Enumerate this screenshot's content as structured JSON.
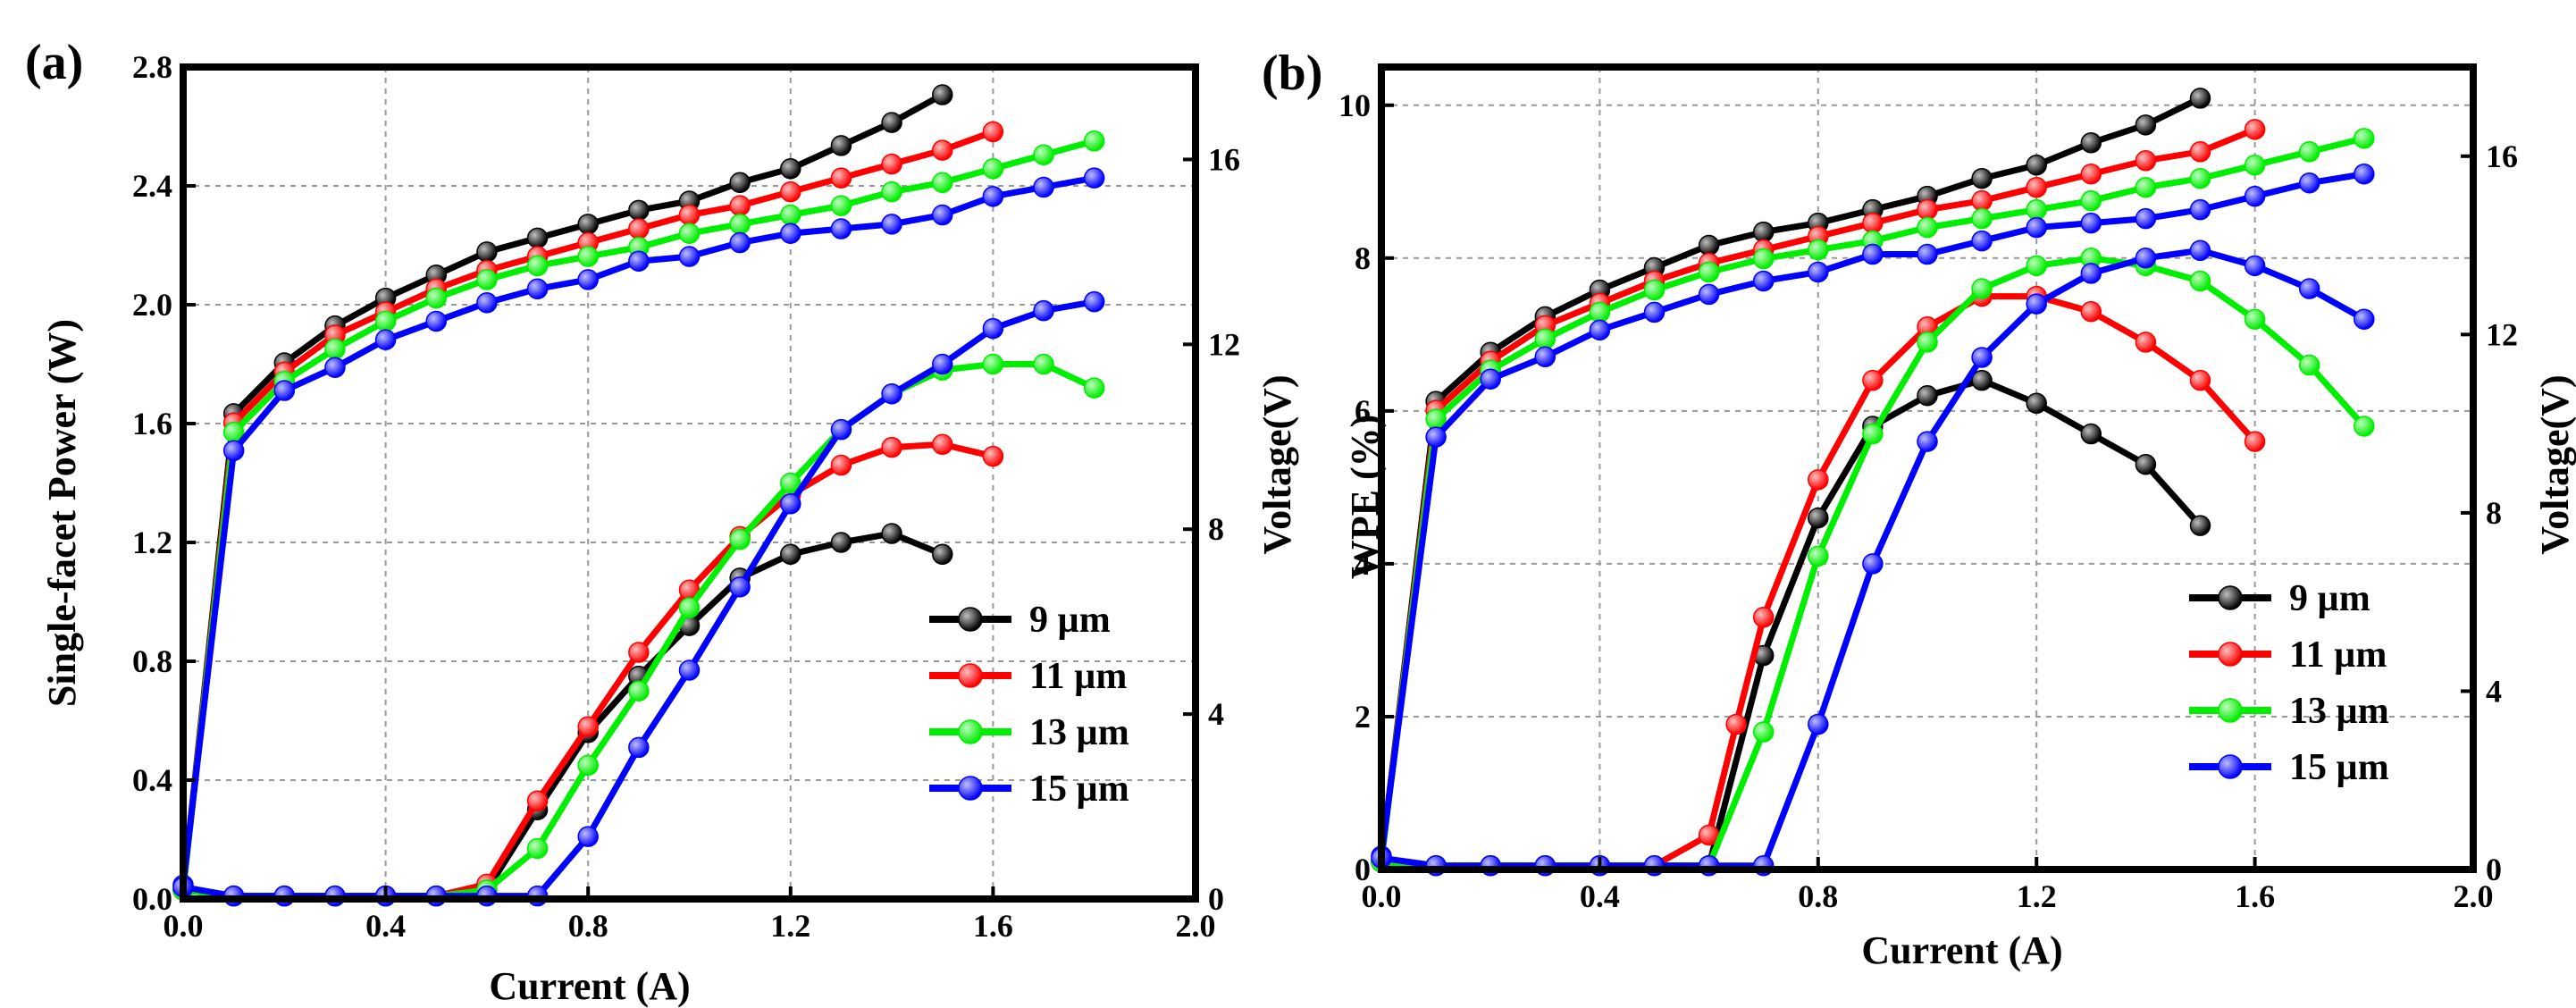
{
  "colors": {
    "9": "#000000",
    "11": "#ff0000",
    "13": "#00ee00",
    "15": "#0000ff"
  },
  "chart_data": [
    {
      "type": "line",
      "panel_label": "(a)",
      "xlabel": "Current (A)",
      "ylabel": "Single-facet Power (W)",
      "y2label": "Voltage(V)",
      "xlim": [
        0,
        2.0
      ],
      "ylim": [
        0,
        2.8
      ],
      "y2lim": [
        0,
        18
      ],
      "xticks": [
        "0.0",
        "0.4",
        "0.8",
        "1.2",
        "1.6",
        "2.0"
      ],
      "yticks": [
        "0.0",
        "0.4",
        "0.8",
        "1.2",
        "1.6",
        "2.0",
        "2.4",
        "2.8"
      ],
      "y2ticks": [
        "0",
        "4",
        "8",
        "12",
        "16"
      ],
      "grid": true,
      "legend_position": "lower-right",
      "series": [
        {
          "name": "9  µm",
          "key": "9",
          "power_x": [
            0,
            0.1,
            0.2,
            0.3,
            0.4,
            0.5,
            0.6,
            0.7,
            0.8,
            0.9,
            1.0,
            1.1,
            1.2,
            1.3,
            1.4,
            1.5
          ],
          "power": [
            0.03,
            0.01,
            0.01,
            0.01,
            0.01,
            0.01,
            0.03,
            0.3,
            0.56,
            0.75,
            0.92,
            1.08,
            1.16,
            1.2,
            1.23,
            1.16
          ],
          "voltage_x": [
            0,
            0.1,
            0.2,
            0.3,
            0.4,
            0.5,
            0.6,
            0.7,
            0.8,
            0.9,
            1.0,
            1.1,
            1.2,
            1.3,
            1.4,
            1.5
          ],
          "voltage": [
            0.2,
            10.5,
            11.6,
            12.4,
            13.0,
            13.5,
            14.0,
            14.3,
            14.6,
            14.9,
            15.1,
            15.5,
            15.8,
            16.3,
            16.8,
            17.4
          ]
        },
        {
          "name": "11 µm",
          "key": "11",
          "power_x": [
            0,
            0.1,
            0.2,
            0.3,
            0.4,
            0.5,
            0.6,
            0.7,
            0.8,
            0.9,
            1.0,
            1.1,
            1.2,
            1.3,
            1.4,
            1.5,
            1.6
          ],
          "power": [
            0.03,
            0.01,
            0.01,
            0.01,
            0.01,
            0.01,
            0.05,
            0.33,
            0.58,
            0.83,
            1.04,
            1.22,
            1.36,
            1.46,
            1.52,
            1.53,
            1.49
          ],
          "voltage_x": [
            0,
            0.1,
            0.2,
            0.3,
            0.4,
            0.5,
            0.6,
            0.7,
            0.8,
            0.9,
            1.0,
            1.1,
            1.2,
            1.3,
            1.4,
            1.5,
            1.6
          ],
          "voltage": [
            0.2,
            10.3,
            11.4,
            12.2,
            12.7,
            13.2,
            13.6,
            13.9,
            14.2,
            14.5,
            14.8,
            15.0,
            15.3,
            15.6,
            15.9,
            16.2,
            16.6
          ]
        },
        {
          "name": "13 µm",
          "key": "13",
          "power_x": [
            0,
            0.1,
            0.2,
            0.3,
            0.4,
            0.5,
            0.6,
            0.7,
            0.8,
            0.9,
            1.0,
            1.1,
            1.2,
            1.3,
            1.4,
            1.5,
            1.6,
            1.7,
            1.8
          ],
          "power": [
            0.03,
            0.01,
            0.01,
            0.01,
            0.01,
            0.01,
            0.03,
            0.17,
            0.45,
            0.7,
            0.98,
            1.21,
            1.4,
            1.58,
            1.7,
            1.78,
            1.8,
            1.8,
            1.72
          ],
          "voltage_x": [
            0,
            0.1,
            0.2,
            0.3,
            0.4,
            0.5,
            0.6,
            0.7,
            0.8,
            0.9,
            1.0,
            1.1,
            1.2,
            1.3,
            1.4,
            1.5,
            1.6,
            1.7,
            1.8
          ],
          "voltage": [
            0.2,
            10.1,
            11.2,
            11.9,
            12.5,
            13.0,
            13.4,
            13.7,
            13.9,
            14.1,
            14.4,
            14.6,
            14.8,
            15.0,
            15.3,
            15.5,
            15.8,
            16.1,
            16.4
          ]
        },
        {
          "name": "15 µm",
          "key": "15",
          "power_x": [
            0,
            0.1,
            0.2,
            0.3,
            0.4,
            0.5,
            0.6,
            0.7,
            0.8,
            0.9,
            1.0,
            1.1,
            1.2,
            1.3,
            1.4,
            1.5,
            1.6,
            1.7,
            1.8
          ],
          "power": [
            0.04,
            0.01,
            0.01,
            0.01,
            0.01,
            0.01,
            0.01,
            0.01,
            0.21,
            0.51,
            0.77,
            1.05,
            1.33,
            1.58,
            1.7,
            1.8,
            1.92,
            1.98,
            2.01
          ],
          "voltage_x": [
            0,
            0.1,
            0.2,
            0.3,
            0.4,
            0.5,
            0.6,
            0.7,
            0.8,
            0.9,
            1.0,
            1.1,
            1.2,
            1.3,
            1.4,
            1.5,
            1.6,
            1.7,
            1.8
          ],
          "voltage": [
            0.3,
            9.7,
            11.0,
            11.5,
            12.1,
            12.5,
            12.9,
            13.2,
            13.4,
            13.8,
            13.9,
            14.2,
            14.4,
            14.5,
            14.6,
            14.8,
            15.2,
            15.4,
            15.6
          ]
        }
      ]
    },
    {
      "type": "line",
      "panel_label": "(b)",
      "xlabel": "Current (A)",
      "ylabel": "WPE (%)",
      "y2label": "Voltage(V)",
      "xlim": [
        0,
        2.0
      ],
      "ylim": [
        0,
        10.5
      ],
      "y2lim": [
        0,
        18
      ],
      "xticks": [
        "0.0",
        "0.4",
        "0.8",
        "1.2",
        "1.6",
        "2.0"
      ],
      "yticks": [
        "0",
        "2",
        "4",
        "6",
        "8",
        "10"
      ],
      "y2ticks": [
        "0",
        "4",
        "8",
        "12",
        "16"
      ],
      "grid": true,
      "legend_position": "lower-right",
      "series": [
        {
          "name": "9  µm",
          "key": "9",
          "power_x": [
            0,
            0.1,
            0.2,
            0.3,
            0.4,
            0.5,
            0.6,
            0.7,
            0.8,
            0.9,
            1.0,
            1.1,
            1.2,
            1.3,
            1.4,
            1.5
          ],
          "power": [
            0.1,
            0.05,
            0.05,
            0.05,
            0.05,
            0.05,
            0.05,
            2.8,
            4.6,
            5.8,
            6.2,
            6.4,
            6.1,
            5.7,
            5.3,
            4.5
          ],
          "voltage_x": [
            0,
            0.1,
            0.2,
            0.3,
            0.4,
            0.5,
            0.6,
            0.7,
            0.8,
            0.9,
            1.0,
            1.1,
            1.2,
            1.3,
            1.4,
            1.5
          ],
          "voltage": [
            0.2,
            10.5,
            11.6,
            12.4,
            13.0,
            13.5,
            14.0,
            14.3,
            14.5,
            14.8,
            15.1,
            15.5,
            15.8,
            16.3,
            16.7,
            17.3
          ]
        },
        {
          "name": "11 µm",
          "key": "11",
          "power_x": [
            0,
            0.1,
            0.2,
            0.3,
            0.4,
            0.5,
            0.6,
            0.65,
            0.7,
            0.8,
            0.9,
            1.0,
            1.1,
            1.2,
            1.3,
            1.4,
            1.5,
            1.6
          ],
          "power": [
            0.1,
            0.05,
            0.05,
            0.05,
            0.05,
            0.05,
            0.45,
            1.9,
            3.3,
            5.1,
            6.4,
            7.1,
            7.5,
            7.5,
            7.3,
            6.9,
            6.4,
            5.6
          ],
          "voltage_x": [
            0,
            0.1,
            0.2,
            0.3,
            0.4,
            0.5,
            0.6,
            0.7,
            0.8,
            0.9,
            1.0,
            1.1,
            1.2,
            1.3,
            1.4,
            1.5,
            1.6
          ],
          "voltage": [
            0.2,
            10.3,
            11.4,
            12.2,
            12.7,
            13.2,
            13.6,
            13.9,
            14.2,
            14.5,
            14.8,
            15.0,
            15.3,
            15.6,
            15.9,
            16.1,
            16.6
          ]
        },
        {
          "name": "13 µm",
          "key": "13",
          "power_x": [
            0,
            0.1,
            0.2,
            0.3,
            0.4,
            0.5,
            0.6,
            0.7,
            0.8,
            0.9,
            1.0,
            1.1,
            1.2,
            1.3,
            1.4,
            1.5,
            1.6,
            1.7,
            1.8
          ],
          "power": [
            0.1,
            0.05,
            0.05,
            0.05,
            0.05,
            0.05,
            0.05,
            1.8,
            4.1,
            5.7,
            6.9,
            7.6,
            7.9,
            8.0,
            7.9,
            7.7,
            7.2,
            6.6,
            5.8
          ],
          "voltage_x": [
            0,
            0.1,
            0.2,
            0.3,
            0.4,
            0.5,
            0.6,
            0.7,
            0.8,
            0.9,
            1.0,
            1.1,
            1.2,
            1.3,
            1.4,
            1.5,
            1.6,
            1.7,
            1.8
          ],
          "voltage": [
            0.2,
            10.1,
            11.2,
            11.9,
            12.5,
            13.0,
            13.4,
            13.7,
            13.9,
            14.1,
            14.4,
            14.6,
            14.8,
            15.0,
            15.3,
            15.5,
            15.8,
            16.1,
            16.4
          ]
        },
        {
          "name": "15 µm",
          "key": "15",
          "power_x": [
            0,
            0.1,
            0.2,
            0.3,
            0.4,
            0.5,
            0.6,
            0.7,
            0.8,
            0.9,
            1.0,
            1.1,
            1.2,
            1.3,
            1.4,
            1.5,
            1.6,
            1.7,
            1.8
          ],
          "power": [
            0.15,
            0.05,
            0.05,
            0.05,
            0.05,
            0.05,
            0.05,
            0.05,
            1.9,
            4.0,
            5.6,
            6.7,
            7.4,
            7.8,
            8.0,
            8.1,
            7.9,
            7.6,
            7.2
          ],
          "voltage_x": [
            0,
            0.1,
            0.2,
            0.3,
            0.4,
            0.5,
            0.6,
            0.7,
            0.8,
            0.9,
            1.0,
            1.1,
            1.2,
            1.3,
            1.4,
            1.5,
            1.6,
            1.7,
            1.8
          ],
          "voltage": [
            0.3,
            9.7,
            11.0,
            11.5,
            12.1,
            12.5,
            12.9,
            13.2,
            13.4,
            13.8,
            13.8,
            14.1,
            14.4,
            14.5,
            14.6,
            14.8,
            15.1,
            15.4,
            15.6
          ]
        }
      ]
    }
  ]
}
